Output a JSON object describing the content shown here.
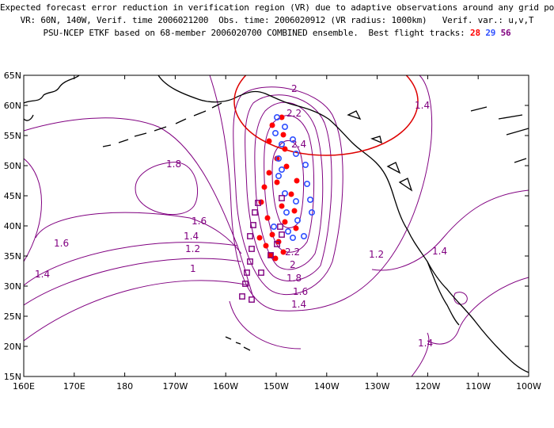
{
  "header": {
    "line1": "Expected forecast error reduction in verification region (VR) due to adaptive observations around any grid point.",
    "line2": "VR: 60N, 140W, Verif. time 2006021200  Obs. time: 2006020912 (VR radius: 1000km)   Verif. var.: u,v,T",
    "line3": "PSU-NCEP ETKF based on 68-member 2006020700 COMBINED ensemble.  Best flight tracks:",
    "track_ids": [
      "28",
      "29",
      "56"
    ]
  },
  "map": {
    "lon_ticks": [
      "160E",
      "170E",
      "180",
      "170W",
      "160W",
      "150W",
      "140W",
      "130W",
      "120W",
      "110W",
      "100W"
    ],
    "lat_ticks": [
      "65N",
      "60N",
      "55N",
      "50N",
      "45N",
      "40N",
      "35N",
      "30N",
      "25N",
      "20N",
      "15N"
    ],
    "lon_range": [
      160,
      260
    ],
    "lat_range": [
      15,
      65
    ],
    "contour_labels": [
      "1.8",
      "1.6",
      "1.4",
      "1.2",
      "1",
      "1.6",
      "1.4",
      "2",
      "2.2",
      "2.4",
      "2.2",
      "2",
      "1.8",
      "1.6",
      "1.4",
      "1.4",
      "1.2",
      "1.4",
      "1.4"
    ],
    "colors": {
      "contour": "#800080",
      "coast": "#000000",
      "track_28": "#ff0000",
      "track_29": "#3050ff",
      "track_56": "#800080",
      "vr_circle": "#dd0000"
    }
  }
}
